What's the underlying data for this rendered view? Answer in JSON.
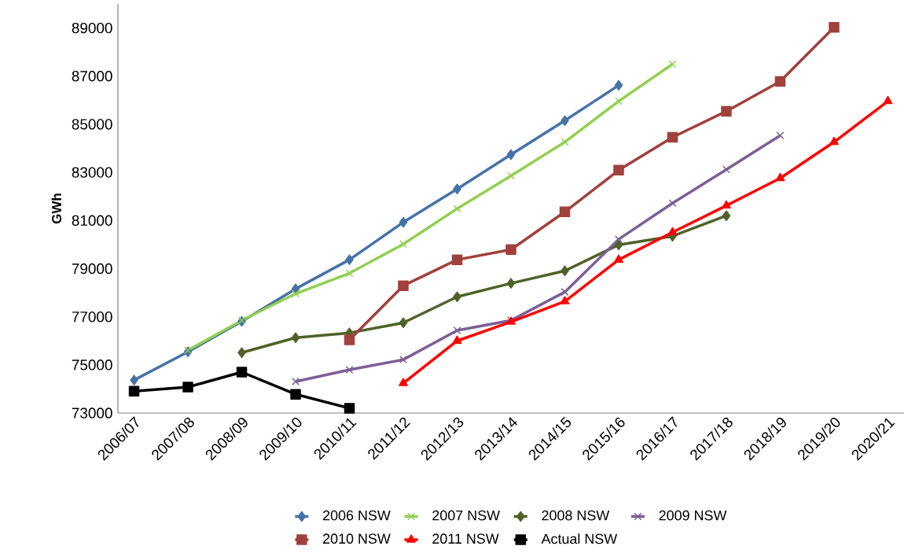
{
  "chart_data": {
    "type": "line",
    "ylabel": "GWh",
    "categories": [
      "2006/07",
      "2007/08",
      "2008/09",
      "2009/10",
      "2010/11",
      "2011/12",
      "2012/13",
      "2013/14",
      "2014/15",
      "2015/16",
      "2016/17",
      "2017/18",
      "2018/19",
      "2019/20",
      "2020/21"
    ],
    "ylim": [
      73000,
      90000
    ],
    "yticks": [
      73000,
      75000,
      77000,
      79000,
      81000,
      83000,
      85000,
      87000,
      89000
    ],
    "grid": false,
    "legend": "bottom",
    "series": [
      {
        "name": "2006 NSW",
        "color": "#4672a8",
        "marker": "diamond",
        "values": [
          74370,
          75540,
          76810,
          78160,
          79370,
          80930,
          82310,
          83740,
          85150,
          86620,
          null,
          null,
          null,
          null,
          null
        ]
      },
      {
        "name": "2007 NSW",
        "color": "#92d050",
        "marker": "cross",
        "values": [
          null,
          75610,
          76850,
          77960,
          78810,
          80020,
          81490,
          82860,
          84260,
          85960,
          87500,
          null,
          null,
          null,
          null
        ]
      },
      {
        "name": "2008 NSW",
        "color": "#4f6228",
        "marker": "diamond",
        "values": [
          null,
          null,
          75510,
          76130,
          76330,
          76750,
          77830,
          78390,
          78910,
          79990,
          80350,
          81200,
          null,
          null,
          null
        ]
      },
      {
        "name": "2009 NSW",
        "color": "#7b5f97",
        "marker": "cross",
        "values": [
          null,
          null,
          null,
          74310,
          74800,
          75220,
          76430,
          76850,
          78030,
          80220,
          81720,
          83120,
          84530,
          null,
          null
        ]
      },
      {
        "name": "2010 NSW",
        "color": "#a0413c",
        "marker": "square",
        "values": [
          null,
          null,
          null,
          null,
          76040,
          78290,
          79370,
          79790,
          81360,
          83090,
          84460,
          85540,
          86780,
          89030,
          null
        ]
      },
      {
        "name": "2011 NSW",
        "color": "#ff0000",
        "marker": "triangle",
        "values": [
          null,
          null,
          null,
          null,
          null,
          74240,
          76000,
          76790,
          77640,
          79370,
          80510,
          81620,
          82760,
          84260,
          85960
        ]
      },
      {
        "name": "Actual NSW",
        "color": "#000000",
        "marker": "square",
        "values": [
          73910,
          74080,
          74700,
          73780,
          73200,
          null,
          null,
          null,
          null,
          null,
          null,
          null,
          null,
          null,
          null
        ]
      }
    ]
  }
}
